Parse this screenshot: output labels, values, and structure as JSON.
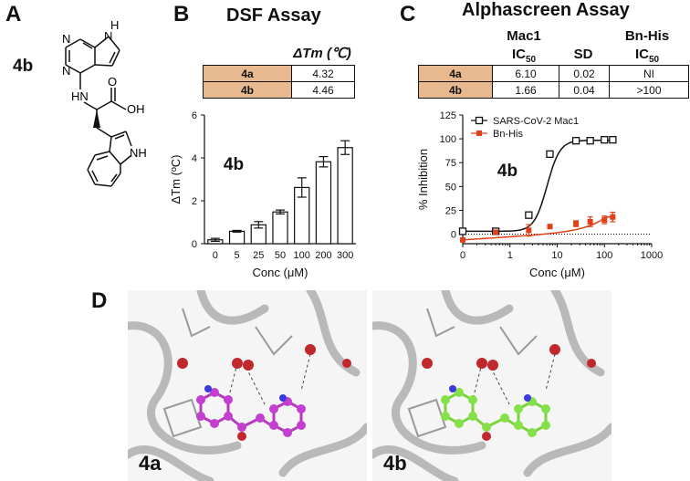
{
  "panels": {
    "a": "A",
    "b": "B",
    "c": "C",
    "d": "D"
  },
  "panel_a": {
    "compound": "4b",
    "atoms": {
      "n1": "N",
      "n3": "N",
      "nh9": "H",
      "n7": "N",
      "hn": "HN",
      "oh": "OH",
      "o": "O",
      "nh_indole": "NH"
    }
  },
  "panel_b": {
    "title": "DSF Assay",
    "table": {
      "header": "ΔTm (℃)",
      "rows": [
        {
          "compound": "4a",
          "value": "4.32"
        },
        {
          "compound": "4b",
          "value": "4.46"
        }
      ]
    },
    "chart_label": "4b"
  },
  "panel_c": {
    "title": "Alphascreen Assay",
    "table": {
      "col1": {
        "line1": "Mac1",
        "line2": "IC",
        "sub": "50"
      },
      "col2": {
        "line1": "SD"
      },
      "col3": {
        "line1": "Bn-His",
        "line2": "IC",
        "sub": "50"
      },
      "rows": [
        {
          "compound": "4a",
          "ic50": "6.10",
          "sd": "0.02",
          "bnhis": "NI"
        },
        {
          "compound": "4b",
          "ic50": "1.66",
          "sd": "0.04",
          "bnhis": ">100"
        }
      ]
    },
    "chart_label": "4b"
  },
  "panel_d": {
    "left_label": "4a",
    "right_label": "4b"
  },
  "chart_data": [
    {
      "type": "bar",
      "title": "",
      "xlabel": "Conc (μM)",
      "ylabel": "ΔTm (ºC)",
      "ylim": [
        0,
        6
      ],
      "yticks": [
        0,
        2,
        4,
        6
      ],
      "categories": [
        "0",
        "5",
        "25",
        "50",
        "100",
        "200",
        "300"
      ],
      "values": [
        0.18,
        0.58,
        0.88,
        1.48,
        2.62,
        3.82,
        4.48
      ],
      "errors": [
        0.07,
        0.04,
        0.15,
        0.09,
        0.45,
        0.24,
        0.32
      ],
      "grid": false
    },
    {
      "type": "scatter",
      "title": "",
      "xlabel": "Conc (μM)",
      "ylabel": "% Inhibition",
      "xscale": "log",
      "xlim": [
        0.1,
        1000
      ],
      "ylim": [
        -10,
        125
      ],
      "yticks": [
        0,
        25,
        50,
        75,
        100,
        125
      ],
      "xticks": [
        0.1,
        1,
        10,
        100,
        1000
      ],
      "xtick_labels": [
        "0",
        "1",
        "10",
        "100",
        "1000"
      ],
      "legend_position": "top-left",
      "series": [
        {
          "name": "SARS-CoV-2 Mac1",
          "color": "#111111",
          "marker": "open-square",
          "x": [
            0.1,
            0.5,
            2.5,
            7,
            25,
            50,
            100,
            150
          ],
          "y": [
            3,
            3,
            20,
            84,
            98,
            98,
            99,
            99
          ],
          "errors": [
            0,
            0,
            0,
            0,
            0,
            0,
            0,
            0
          ]
        },
        {
          "name": "Bn-His",
          "color": "#e0401a",
          "marker": "filled-square",
          "x": [
            0.1,
            0.5,
            2.5,
            7,
            25,
            50,
            100,
            150
          ],
          "y": [
            -6,
            2,
            4,
            8,
            11,
            13,
            15,
            18
          ],
          "errors": [
            0,
            0,
            6,
            0,
            3,
            5,
            4,
            5
          ]
        }
      ]
    }
  ]
}
